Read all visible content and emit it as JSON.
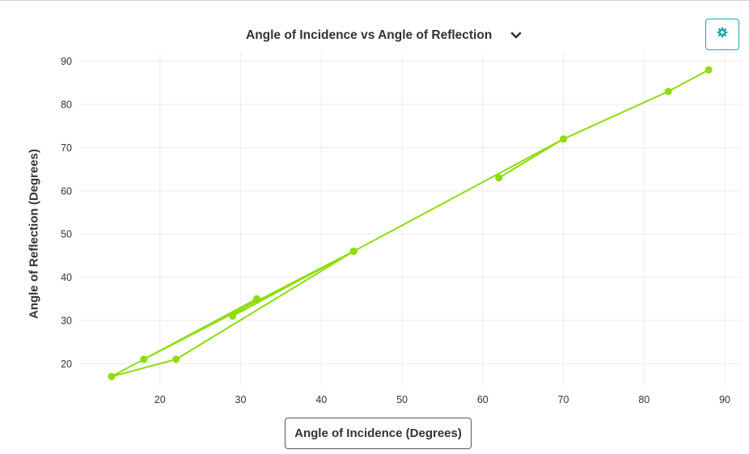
{
  "chart_data": {
    "type": "line",
    "title": "Angle of Incidence vs Angle of Reflection",
    "xlabel": "Angle of Incidence (Degrees)",
    "ylabel": "Angle of Reflection (Degrees)",
    "xlim": [
      10,
      92
    ],
    "ylim": [
      15,
      92
    ],
    "xticks": [
      20,
      30,
      40,
      50,
      60,
      70,
      80,
      90
    ],
    "yticks": [
      20,
      30,
      40,
      50,
      60,
      70,
      80,
      90
    ],
    "grid": true,
    "color": "#8edc0c",
    "series": [
      {
        "x": [
          88,
          83,
          70,
          62,
          70,
          44,
          18,
          14,
          22,
          44,
          29,
          32,
          18
        ],
        "y": [
          88,
          83,
          72,
          63,
          72,
          46,
          21,
          17,
          21,
          46,
          31,
          35,
          21
        ]
      }
    ]
  },
  "controls": {
    "settings_icon": "gear-icon",
    "dropdown_icon": "chevron-down-icon",
    "accent_color": "#18a9b7"
  }
}
